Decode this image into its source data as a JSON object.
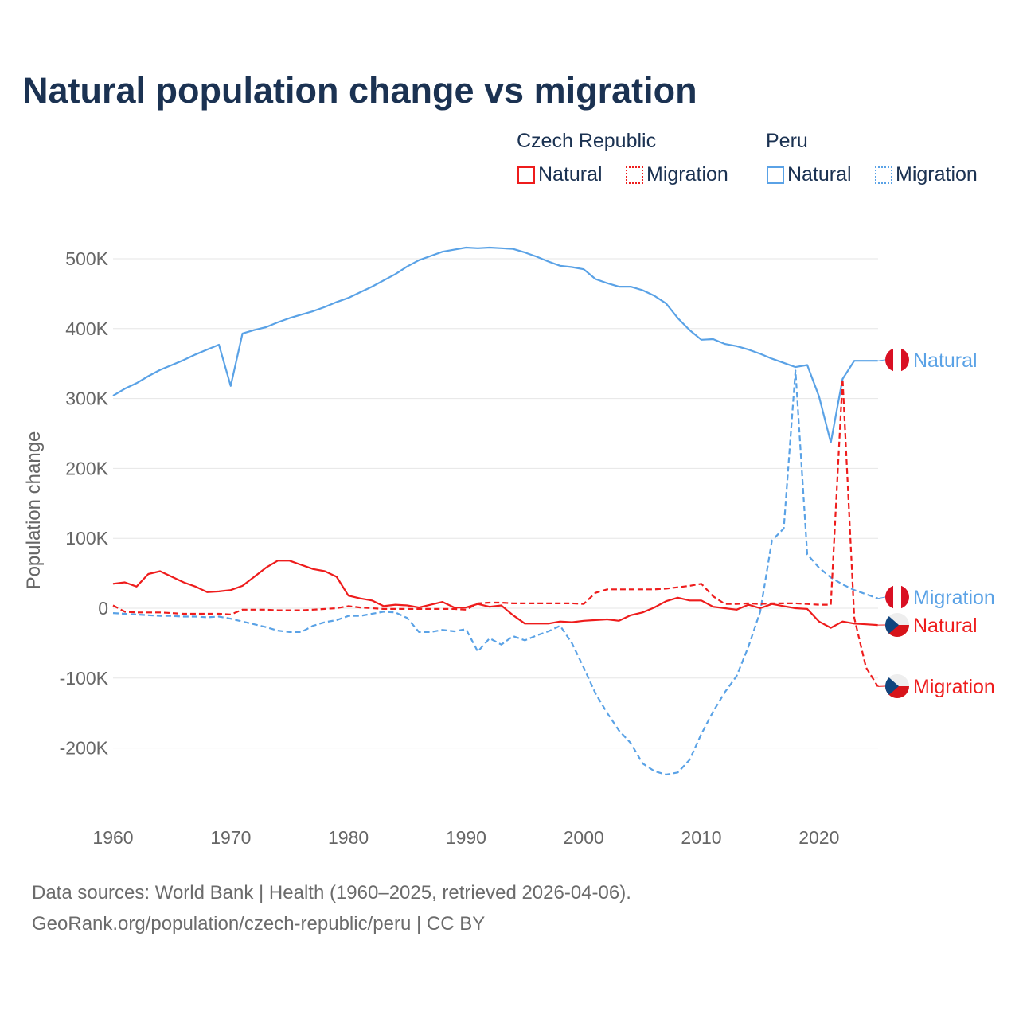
{
  "title": "Natural population change vs migration",
  "legend": {
    "groups": [
      {
        "name": "Czech Republic",
        "items": [
          "Natural",
          "Migration"
        ]
      },
      {
        "name": "Peru",
        "items": [
          "Natural",
          "Migration"
        ]
      }
    ]
  },
  "colors": {
    "czech": "#ee1c1c",
    "peru": "#5aa2e6",
    "title": "#1b3252"
  },
  "footer": {
    "line1": "Data sources: World Bank | Health (1960–2025, retrieved 2026-04-06).",
    "line2": "GeoRank.org/population/czech-republic/peru | CC BY"
  },
  "chart_data": {
    "type": "line",
    "title": "Natural population change vs migration",
    "xlabel": "",
    "ylabel": "Population change",
    "xlim": [
      1960,
      2025
    ],
    "ylim": [
      -270000,
      560000
    ],
    "x_ticks": [
      1960,
      1970,
      1980,
      1990,
      2000,
      2010,
      2020
    ],
    "y_ticks": [
      500000,
      400000,
      300000,
      200000,
      100000,
      0,
      -100000,
      -200000
    ],
    "y_tick_labels": [
      "500K",
      "400K",
      "300K",
      "200K",
      "100K",
      "0",
      "-100K",
      "-200K"
    ],
    "grid": true,
    "legend_placement": "top-right",
    "x_start": 1960,
    "series": [
      {
        "name": "Peru Natural",
        "country": "Peru",
        "kind": "Natural",
        "style": "solid",
        "end_label": "Natural",
        "values_k": [
          304,
          314,
          322,
          332,
          341,
          348,
          355,
          363,
          370,
          377,
          318,
          393,
          398,
          402,
          409,
          415,
          420,
          425,
          431,
          438,
          444,
          452,
          460,
          469,
          478,
          489,
          498,
          504,
          510,
          513,
          516,
          515,
          516,
          515,
          514,
          509,
          503,
          496,
          490,
          488,
          485,
          471,
          465,
          460,
          460,
          455,
          447,
          436,
          415,
          398,
          384,
          385,
          378,
          375,
          370,
          364,
          357,
          351,
          345,
          348,
          303,
          237,
          328,
          354,
          354,
          354
        ]
      },
      {
        "name": "Peru Migration",
        "country": "Peru",
        "kind": "Migration",
        "style": "dashed",
        "end_label": "Migration",
        "values_k": [
          -7,
          -8,
          -9,
          -10,
          -11,
          -11,
          -12,
          -12,
          -13,
          -12,
          -15,
          -19,
          -23,
          -27,
          -32,
          -34,
          -34,
          -25,
          -20,
          -17,
          -11,
          -11,
          -8,
          -5,
          -6,
          -14,
          -34,
          -34,
          -31,
          -33,
          -30,
          -62,
          -43,
          -52,
          -40,
          -46,
          -39,
          -33,
          -25,
          -50,
          -85,
          -122,
          -150,
          -175,
          -193,
          -222,
          -233,
          -238,
          -235,
          -217,
          -180,
          -148,
          -120,
          -97,
          -55,
          -5,
          97,
          114,
          340,
          77,
          58,
          44,
          34,
          26,
          20,
          14
        ]
      },
      {
        "name": "Czech Republic Natural",
        "country": "Czech Republic",
        "kind": "Natural",
        "style": "solid",
        "end_label": "Natural",
        "values_k": [
          35,
          37,
          31,
          49,
          53,
          45,
          37,
          31,
          23,
          24,
          26,
          32,
          45,
          58,
          68,
          68,
          62,
          56,
          53,
          45,
          18,
          14,
          11,
          3,
          5,
          4,
          1,
          5,
          9,
          1,
          1,
          6,
          2,
          4,
          -10,
          -22,
          -22,
          -22,
          -19,
          -20,
          -18,
          -17,
          -16,
          -18,
          -10,
          -6,
          1,
          10,
          15,
          11,
          11,
          2,
          0,
          -2,
          5,
          0,
          6,
          3,
          0,
          -1,
          -19,
          -28,
          -19,
          -22,
          -23,
          -24
        ]
      },
      {
        "name": "Czech Republic Migration",
        "country": "Czech Republic",
        "kind": "Migration",
        "style": "dashed",
        "end_label": "Migration",
        "values_k": [
          4,
          -5,
          -6,
          -6,
          -6,
          -7,
          -8,
          -8,
          -8,
          -8,
          -9,
          -2,
          -2,
          -2,
          -3,
          -3,
          -3,
          -2,
          -1,
          0,
          3,
          1,
          0,
          -1,
          -1,
          -1,
          -1,
          -1,
          -1,
          -1,
          -2,
          7,
          8,
          8,
          7,
          7,
          7,
          7,
          7,
          7,
          6,
          22,
          27,
          27,
          27,
          27,
          27,
          28,
          30,
          32,
          35,
          17,
          6,
          6,
          7,
          6,
          7,
          7,
          7,
          6,
          5,
          5,
          328,
          -14,
          -85,
          -112
        ]
      }
    ]
  }
}
